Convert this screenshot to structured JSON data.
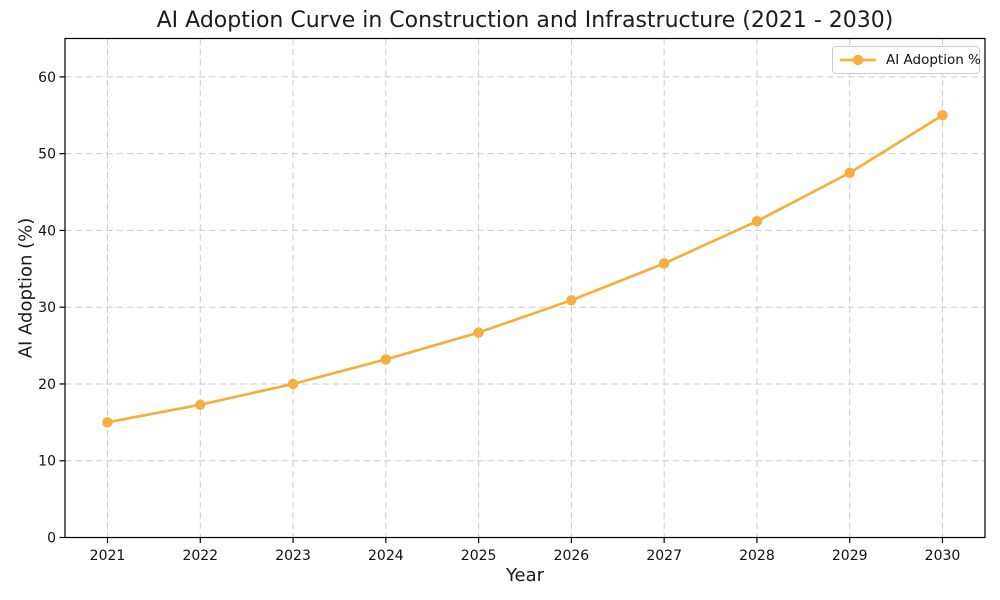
{
  "figure": {
    "title": "AI Adoption Curve in Construction and Infrastructure (2021 - 2030)",
    "xlabel": "Year",
    "ylabel": "AI Adoption (%)",
    "legend_label": "AI Adoption %"
  },
  "chart_data": {
    "type": "line",
    "title": "AI Adoption Curve in Construction and Infrastructure (2021 - 2030)",
    "xlabel": "Year",
    "ylabel": "AI Adoption (%)",
    "x": [
      2021,
      2022,
      2023,
      2024,
      2025,
      2026,
      2027,
      2028,
      2029,
      2030
    ],
    "series": [
      {
        "name": "AI Adoption %",
        "values": [
          15.0,
          17.3,
          20.0,
          23.2,
          26.7,
          30.9,
          35.7,
          41.2,
          47.5,
          55.0
        ],
        "color": "#F5AF3E",
        "marker": "circle",
        "line_width": 2.7,
        "marker_radius": 5.2
      }
    ],
    "xticks": [
      2021,
      2022,
      2023,
      2024,
      2025,
      2026,
      2027,
      2028,
      2029,
      2030
    ],
    "yticks": [
      0,
      10,
      20,
      30,
      40,
      50,
      60
    ],
    "ylim": [
      0,
      65
    ],
    "grid": true,
    "grid_style": "dashed",
    "legend_position": "upper right"
  },
  "colors": {
    "line": "#F5AF3E",
    "grid": "#cdcdcd",
    "spine": "#000000",
    "tick_text": "#111111",
    "title_text": "#1c1c1c",
    "background": "#ffffff",
    "legend_border": "#cccccc",
    "legend_background": "#ffffff"
  }
}
